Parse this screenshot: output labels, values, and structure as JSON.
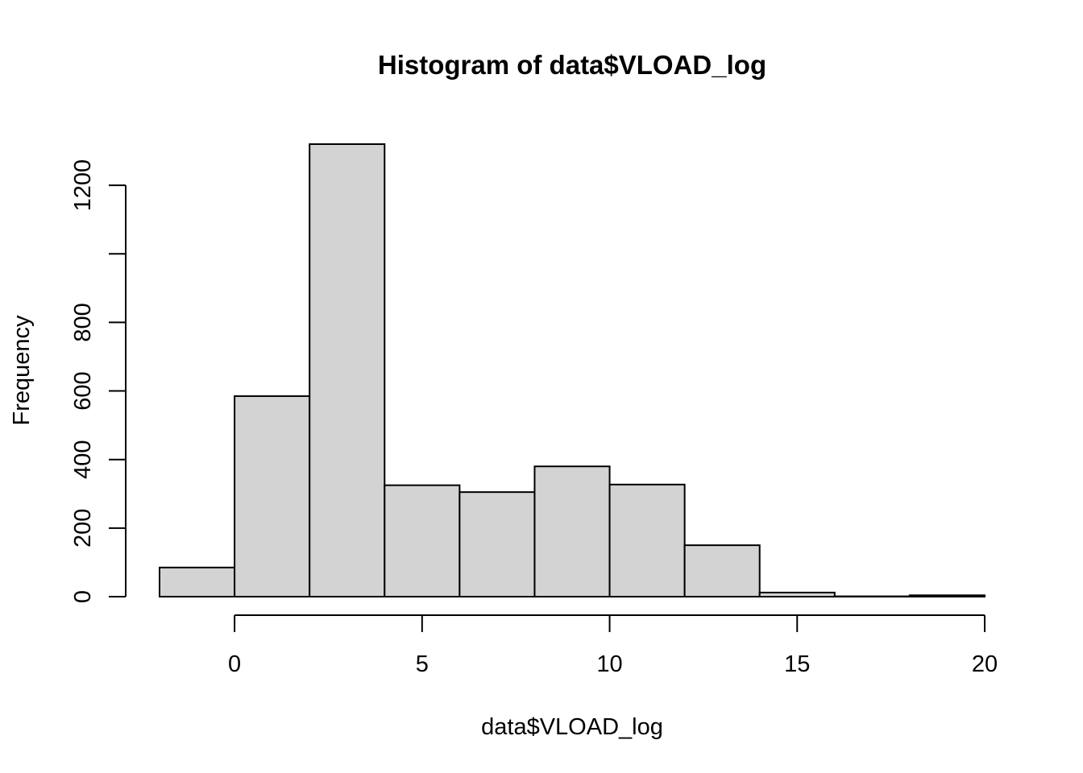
{
  "chart_data": {
    "type": "bar",
    "title": "Histogram of data$VLOAD_log",
    "xlabel": "data$VLOAD_log",
    "ylabel": "Frequency",
    "bin_edges": [
      -2,
      0,
      2,
      4,
      6,
      8,
      10,
      12,
      14,
      16,
      18,
      20
    ],
    "values": [
      85,
      585,
      1320,
      325,
      305,
      380,
      327,
      150,
      12,
      1,
      4
    ],
    "xlim": [
      -2,
      20
    ],
    "ylim": [
      0,
      1320
    ],
    "x_ticks": [
      0,
      5,
      10,
      15,
      20
    ],
    "y_ticks": [
      0,
      200,
      400,
      600,
      800,
      1000,
      1200
    ],
    "y_tick_labels": [
      "0",
      "200",
      "400",
      "600",
      "800",
      "",
      "1200"
    ],
    "x_tick_labels": [
      "0",
      "5",
      "10",
      "15",
      "20"
    ],
    "grid": false,
    "bar_color": "#d3d3d3",
    "border_color": "#000000"
  }
}
